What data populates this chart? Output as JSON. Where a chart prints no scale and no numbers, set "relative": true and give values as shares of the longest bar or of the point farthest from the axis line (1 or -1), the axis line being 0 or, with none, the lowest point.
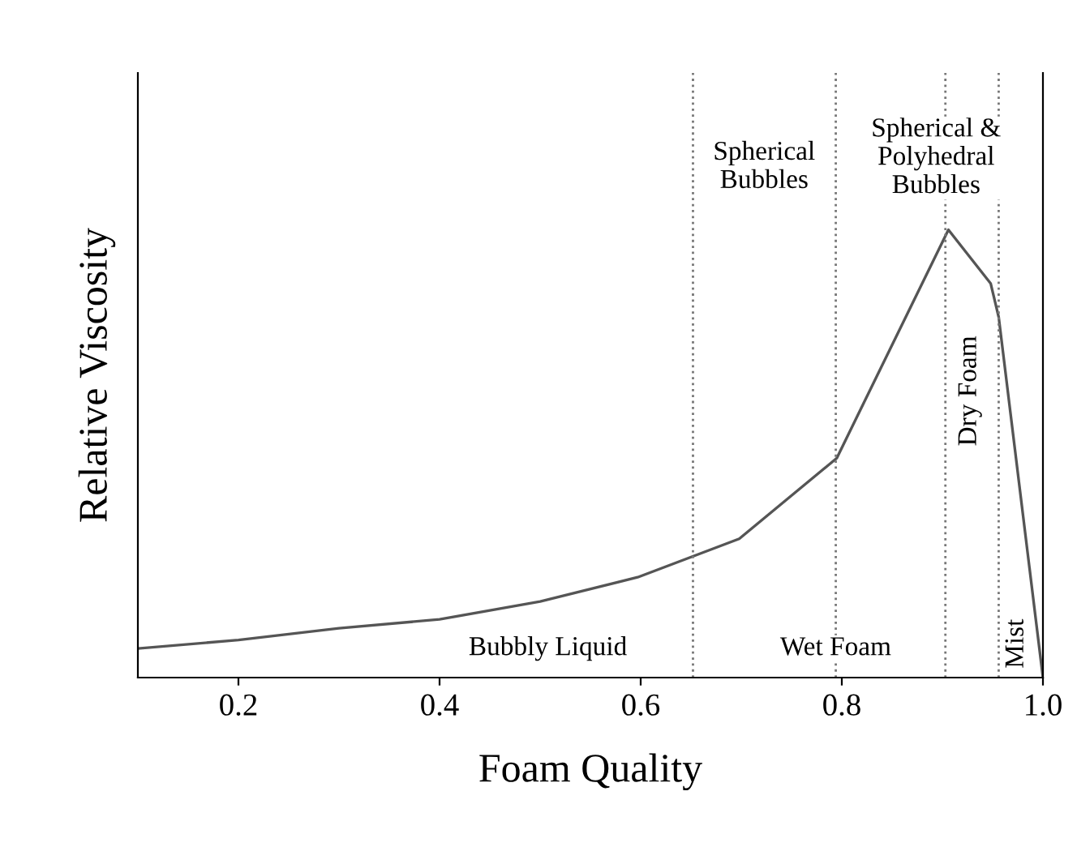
{
  "chart_data": {
    "type": "line",
    "relative": true,
    "xlabel": "Foam Quality",
    "ylabel": "Relative Viscosity",
    "x": [
      0.1,
      0.2,
      0.3,
      0.4,
      0.5,
      0.597,
      0.698,
      0.795,
      0.906,
      0.948,
      0.956,
      1.0
    ],
    "values": [
      0.065,
      0.084,
      0.11,
      0.13,
      0.17,
      0.224,
      0.31,
      0.49,
      1.0,
      0.88,
      0.805,
      0.0
    ],
    "color": "#555555",
    "line_style": "solid",
    "marker": "none",
    "xlim": [
      0.1,
      1.0
    ],
    "xticks": [
      {
        "value": 0.2,
        "label": "0.2"
      },
      {
        "value": 0.4,
        "label": "0.4"
      },
      {
        "value": 0.6,
        "label": "0.6"
      },
      {
        "value": 0.8,
        "label": "0.8"
      },
      {
        "value": 1.0,
        "label": "1.0"
      }
    ],
    "grid": false,
    "legend": false,
    "ref_lines": [
      {
        "axis": "x",
        "value": 0.652,
        "line_style": "dotted",
        "color": "#777777"
      },
      {
        "axis": "x",
        "value": 0.794,
        "line_style": "dotted",
        "color": "#777777"
      },
      {
        "axis": "x",
        "value": 0.903,
        "line_style": "dotted",
        "color": "#777777"
      },
      {
        "axis": "x",
        "value": 0.956,
        "line_style": "dotted",
        "color": "#777777"
      }
    ],
    "annotations": [
      "Spherical\nBubbles",
      "Spherical &\nPolyhedral\nBubbles",
      "Bubbly Liquid",
      "Wet Foam",
      "Dry Foam",
      "Mist"
    ]
  }
}
